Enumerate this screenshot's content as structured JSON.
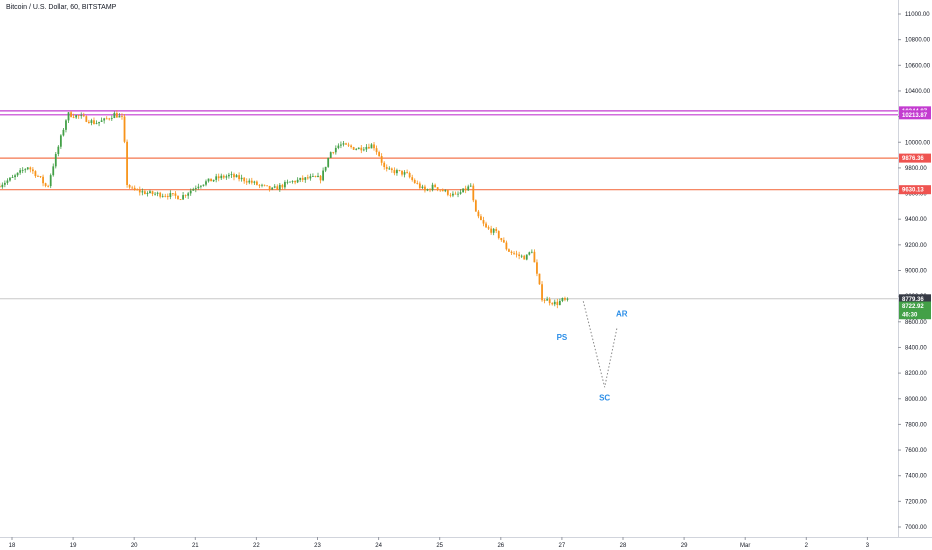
{
  "header": {
    "title": "Bitcoin / U.S. Dollar, 60, BITSTAMP"
  },
  "colors": {
    "up": "#43a047",
    "down": "#f7931a",
    "magenta": "#c33cd0",
    "red_line": "#f4774f",
    "red_tag": "#ef5350",
    "green_tag": "#43a047",
    "current_tag": "#363a45",
    "current_line": "#c8c8c8",
    "annotation": "#2b8ee8",
    "projection": "#888888",
    "grid_text": "#131722"
  },
  "chart_data": {
    "type": "candlestick",
    "title": "Bitcoin / U.S. Dollar, 60, BITSTAMP",
    "y_axis": {
      "ylim": [
        6950,
        11080
      ],
      "ticks": [
        7000,
        7200,
        7400,
        7600,
        7800,
        8000,
        8200,
        8400,
        8600,
        8800,
        9000,
        9200,
        9400,
        9600,
        9800,
        10000,
        10200,
        10400,
        10600,
        10800,
        11000
      ],
      "tick_labels": [
        "7000.00",
        "7200.00",
        "7400.00",
        "7600.00",
        "7800.00",
        "8000.00",
        "8200.00",
        "8400.00",
        "8600.00",
        "8800.00",
        "9000.00",
        "9200.00",
        "9400.00",
        "9600.00",
        "9800.00",
        "10000.00",
        "10200.00",
        "10400.00",
        "10600.00",
        "10800.00",
        "11000.00"
      ]
    },
    "x_axis": {
      "labels": [
        "18",
        "19",
        "20",
        "21",
        "22",
        "23",
        "24",
        "25",
        "26",
        "27",
        "28",
        "29",
        "Mar",
        "2",
        "3"
      ],
      "day_range": [
        17.8,
        32.25
      ]
    },
    "levels": [
      {
        "value": 10244.87,
        "label": "10244.87",
        "style": "magenta"
      },
      {
        "value": 10213.87,
        "label": "10213.87",
        "style": "magenta"
      },
      {
        "value": 9876.36,
        "label": "9876.36",
        "style": "red"
      },
      {
        "value": 9630.13,
        "label": "9630.13",
        "style": "red"
      }
    ],
    "price_tags": [
      {
        "value": 8779.36,
        "label": "8779.36",
        "style": "current"
      },
      {
        "value": 8722.92,
        "label": "8722.92",
        "style": "green"
      },
      {
        "value": 8655,
        "label": "46:30",
        "style": "green"
      }
    ],
    "current_price": 8779.36,
    "price_path": [
      [
        17.8,
        9660
      ],
      [
        18.05,
        9720
      ],
      [
        18.3,
        9810
      ],
      [
        18.5,
        9720
      ],
      [
        18.62,
        9640
      ],
      [
        18.68,
        9760
      ],
      [
        18.85,
        10050
      ],
      [
        18.95,
        10220
      ],
      [
        19.15,
        10200
      ],
      [
        19.4,
        10150
      ],
      [
        19.55,
        10170
      ],
      [
        19.72,
        10220
      ],
      [
        19.86,
        10180
      ],
      [
        19.92,
        9680
      ],
      [
        20.0,
        9630
      ],
      [
        20.3,
        9600
      ],
      [
        20.6,
        9590
      ],
      [
        20.8,
        9570
      ],
      [
        21.1,
        9670
      ],
      [
        21.4,
        9720
      ],
      [
        21.6,
        9740
      ],
      [
        21.9,
        9700
      ],
      [
        22.1,
        9660
      ],
      [
        22.3,
        9630
      ],
      [
        22.6,
        9690
      ],
      [
        22.9,
        9720
      ],
      [
        23.1,
        9720
      ],
      [
        23.25,
        9920
      ],
      [
        23.4,
        9980
      ],
      [
        23.7,
        9950
      ],
      [
        23.95,
        9980
      ],
      [
        24.05,
        9900
      ],
      [
        24.15,
        9780
      ],
      [
        24.35,
        9770
      ],
      [
        24.5,
        9750
      ],
      [
        24.6,
        9700
      ],
      [
        24.8,
        9620
      ],
      [
        24.95,
        9660
      ],
      [
        25.1,
        9620
      ],
      [
        25.3,
        9580
      ],
      [
        25.55,
        9660
      ],
      [
        25.62,
        9450
      ],
      [
        25.8,
        9330
      ],
      [
        25.95,
        9300
      ],
      [
        26.05,
        9240
      ],
      [
        26.15,
        9160
      ],
      [
        26.3,
        9120
      ],
      [
        26.45,
        9100
      ],
      [
        26.55,
        9160
      ],
      [
        26.62,
        8990
      ],
      [
        26.72,
        8780
      ],
      [
        26.85,
        8760
      ],
      [
        26.95,
        8740
      ],
      [
        27.05,
        8770
      ],
      [
        27.12,
        8760
      ]
    ],
    "projection": [
      [
        27.35,
        8760
      ],
      [
        27.7,
        8090
      ],
      [
        27.9,
        8550
      ]
    ],
    "annotations": [
      {
        "text": "PS",
        "day": 27.0,
        "price": 8460
      },
      {
        "text": "SC",
        "day": 27.7,
        "price": 7985
      },
      {
        "text": "AR",
        "day": 27.98,
        "price": 8640
      }
    ]
  }
}
